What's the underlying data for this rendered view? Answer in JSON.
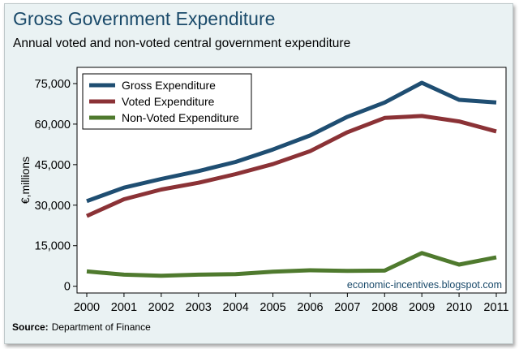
{
  "chart_data": {
    "type": "line",
    "title": "Gross Government Expenditure",
    "subtitle": "Annual voted and non-voted central government expenditure",
    "xlabel": "",
    "ylabel": "€,millions",
    "x": [
      2000,
      2001,
      2002,
      2003,
      2004,
      2005,
      2006,
      2007,
      2008,
      2009,
      2010,
      2011
    ],
    "x_tick_labels": [
      "2000",
      "2001",
      "2002",
      "2003",
      "2004",
      "2005",
      "2006",
      "2007",
      "2008",
      "2009",
      "2010",
      "2011"
    ],
    "ylim": [
      0,
      75000
    ],
    "y_ticks": [
      0,
      15000,
      30000,
      45000,
      60000,
      75000
    ],
    "y_tick_labels": [
      "0",
      "15,000",
      "30,000",
      "45,000",
      "60,000",
      "75,000"
    ],
    "grid": false,
    "legend_position": "top-left",
    "series": [
      {
        "name": "Gross Expenditure",
        "color": "#1f4e72",
        "values": [
          31500,
          36500,
          39700,
          42600,
          46000,
          50600,
          55800,
          62700,
          68000,
          75300,
          69000,
          68000
        ]
      },
      {
        "name": "Voted Expenditure",
        "color": "#8b3236",
        "values": [
          26000,
          32200,
          35800,
          38300,
          41500,
          45200,
          50000,
          57000,
          62300,
          63000,
          61000,
          57300
        ]
      },
      {
        "name": "Non-Voted Expenditure",
        "color": "#4f7a2e",
        "values": [
          5500,
          4300,
          3900,
          4300,
          4500,
          5400,
          5900,
          5700,
          5800,
          12300,
          8000,
          10700
        ]
      }
    ],
    "annotation": "economic-incentives.blogspot.com",
    "source_label": "Source:",
    "source_text": "Department of Finance"
  }
}
